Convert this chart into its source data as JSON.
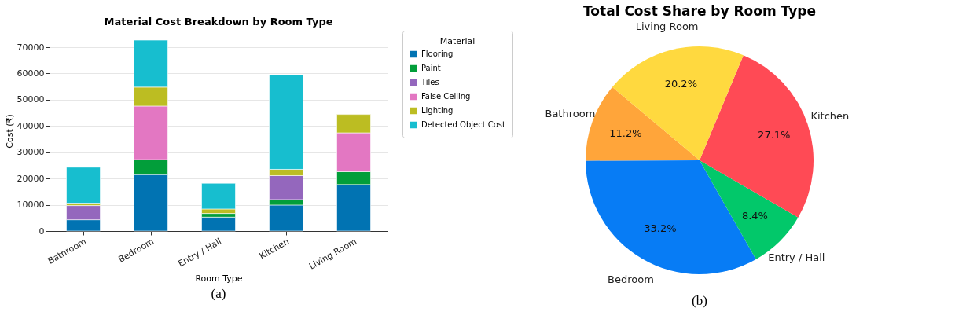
{
  "chart_data": [
    {
      "type": "bar",
      "title": "Material Cost Breakdown by Room Type",
      "xlabel": "Room Type",
      "ylabel": "Cost (₹)",
      "legend_title": "Material",
      "stacked": true,
      "legend": "top right",
      "grid": "y",
      "categories": [
        "Bathroom",
        "Bedroom",
        "Entry / Hall",
        "Kitchen",
        "Living Room"
      ],
      "series": [
        {
          "name": "Flooring",
          "color": "#0173b2",
          "values": [
            4300,
            21500,
            5300,
            9900,
            17700
          ]
        },
        {
          "name": "Paint",
          "color": "#029e3a",
          "values": [
            null,
            5700,
            1400,
            2100,
            4900
          ]
        },
        {
          "name": "Tiles",
          "color": "#9467bd",
          "values": [
            5400,
            0,
            0,
            9100,
            0
          ]
        },
        {
          "name": "False Ceiling",
          "color": "#e377c2",
          "values": [
            0,
            20400,
            0,
            0,
            14800
          ]
        },
        {
          "name": "Lighting",
          "color": "#bcbd22",
          "values": [
            900,
            7200,
            1700,
            2400,
            7000
          ]
        },
        {
          "name": "Detected Object Cost",
          "color": "#17becf",
          "values": [
            13700,
            17900,
            9800,
            35900,
            0
          ]
        }
      ],
      "ylim": [
        0,
        76300
      ],
      "yticks": [
        0,
        10000,
        20000,
        30000,
        40000,
        50000,
        60000,
        70000
      ],
      "annotations": [
        "(a)"
      ]
    },
    {
      "type": "pie",
      "title": "Total Cost Share by Room Type",
      "categories": [
        "Bathroom",
        "Bedroom",
        "Entry / Hall",
        "Kitchen",
        "Living Room"
      ],
      "values": [
        11.2,
        33.2,
        8.4,
        27.1,
        20.2
      ],
      "colors": [
        "#ffa53a",
        "#077cf5",
        "#02c86a",
        "#ff4a55",
        "#ffd93f"
      ],
      "value_labels": [
        "11.2%",
        "33.2%",
        "8.4%",
        "27.1%",
        "20.2%"
      ],
      "annotations": [
        "(b)"
      ]
    }
  ]
}
